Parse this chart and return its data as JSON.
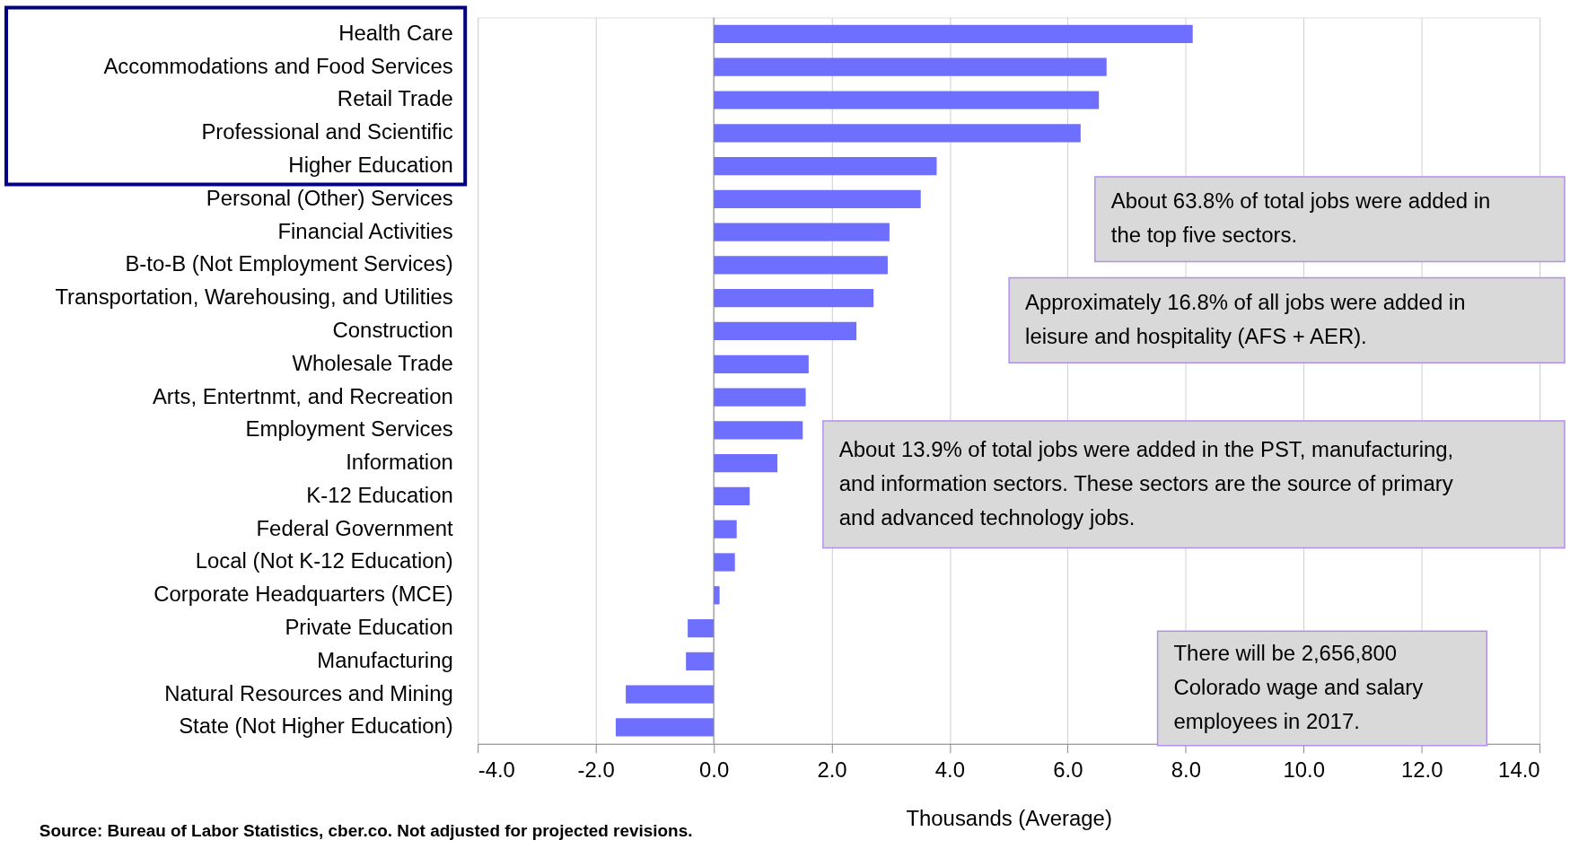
{
  "chart_data": {
    "type": "bar",
    "orientation": "horizontal",
    "xlabel": "Thousands (Average)",
    "categories": [
      "Health Care",
      "Accommodations and Food Services",
      "Retail Trade",
      "Professional and Scientific",
      "Higher Education",
      "Personal (Other) Services",
      "Financial Activities",
      "B-to-B (Not Employment Services)",
      "Transportation, Warehousing, and Utilities",
      "Construction",
      "Wholesale Trade",
      "Arts, Entertnmt, and Recreation",
      "Employment Services",
      "Information",
      "K-12 Education",
      "Federal Government",
      "Local (Not K-12 Education)",
      "Corporate Headquarters (MCE)",
      "Private Education",
      "Manufacturing",
      "Natural Resources and Mining",
      "State (Not Higher Education)"
    ],
    "values": [
      8.12,
      6.66,
      6.53,
      6.22,
      3.78,
      3.51,
      2.98,
      2.95,
      2.71,
      2.42,
      1.61,
      1.56,
      1.51,
      1.08,
      0.61,
      0.39,
      0.36,
      0.1,
      -0.44,
      -0.47,
      -1.49,
      -1.66
    ],
    "color": "#6f6fff",
    "xlim": [
      -4,
      14
    ],
    "xticks": [
      {
        "value": -4,
        "label": "-4.0"
      },
      {
        "value": -2,
        "label": "-2.0"
      },
      {
        "value": 0,
        "label": "0.0"
      },
      {
        "value": 2,
        "label": "2.0"
      },
      {
        "value": 4,
        "label": "4.0"
      },
      {
        "value": 6,
        "label": "6.0"
      },
      {
        "value": 8,
        "label": "8.0"
      },
      {
        "value": 10,
        "label": "10.0"
      },
      {
        "value": 12,
        "label": "12.0"
      },
      {
        "value": 14,
        "label": "14.0"
      }
    ],
    "grid": "x",
    "annotations": [
      "About 63.8% of total jobs were added in the top five sectors.",
      "Approximately 16.8% of all jobs were added in leisure and hospitality (AFS + AER).",
      "About 13.9% of total jobs were added in the PST, manufacturing, and information sectors. These sectors are the source of primary and advanced technology jobs.",
      "There will be 2,656,800 Colorado wage and salary employees in 2017.",
      "Source: Bureau of Labor Statistics, cber.co. Not adjusted for projected revisions."
    ]
  }
}
